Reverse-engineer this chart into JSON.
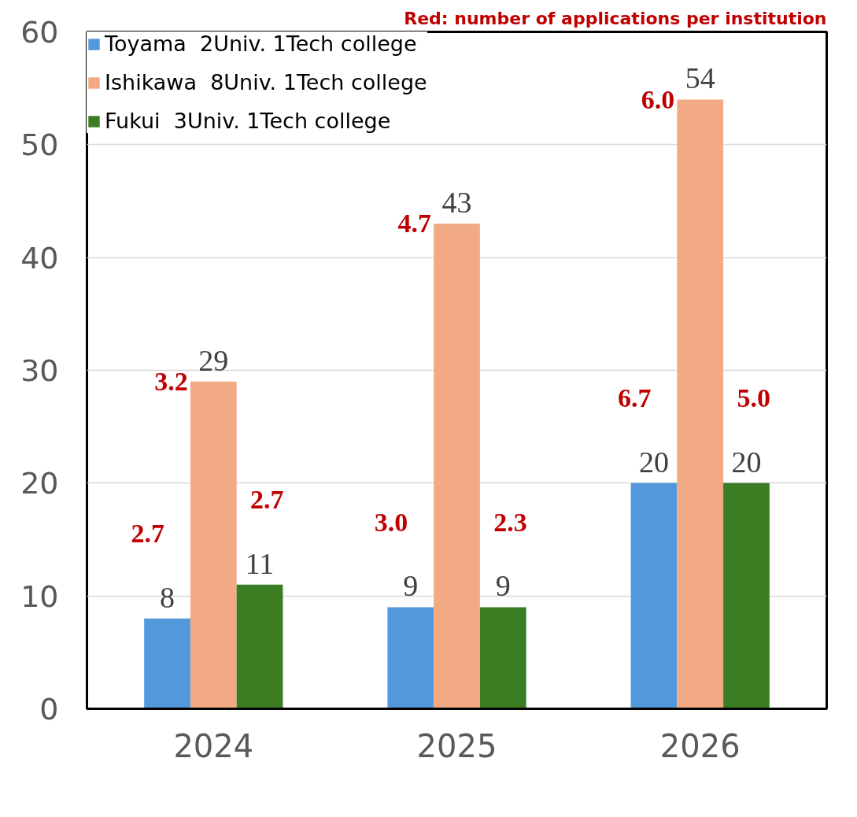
{
  "chart_data": {
    "type": "bar",
    "title": "Red: number of applications per institution",
    "categories": [
      "2024",
      "2025",
      "2026"
    ],
    "series": [
      {
        "name": "Toyama  2Univ. 1Tech college",
        "color": "#5398da",
        "values": [
          8,
          9,
          20
        ]
      },
      {
        "name": "Ishikawa  8Univ. 1Tech college",
        "color": "#f2aa84",
        "values": [
          29,
          43,
          54
        ]
      },
      {
        "name": "Fukui  3Univ. 1Tech college",
        "color": "#3b7d23",
        "values": [
          11,
          9,
          20
        ]
      }
    ],
    "annotations": [
      "2.7",
      "3.2",
      "2.7",
      "3.0",
      "4.7",
      "2.3",
      "6.7",
      "6.0",
      "5.0"
    ],
    "data_labels": true,
    "ylim": [
      0,
      60
    ],
    "yticks": [
      0,
      10,
      20,
      30,
      40,
      50,
      60
    ],
    "grid": "y",
    "legend": "top left"
  }
}
